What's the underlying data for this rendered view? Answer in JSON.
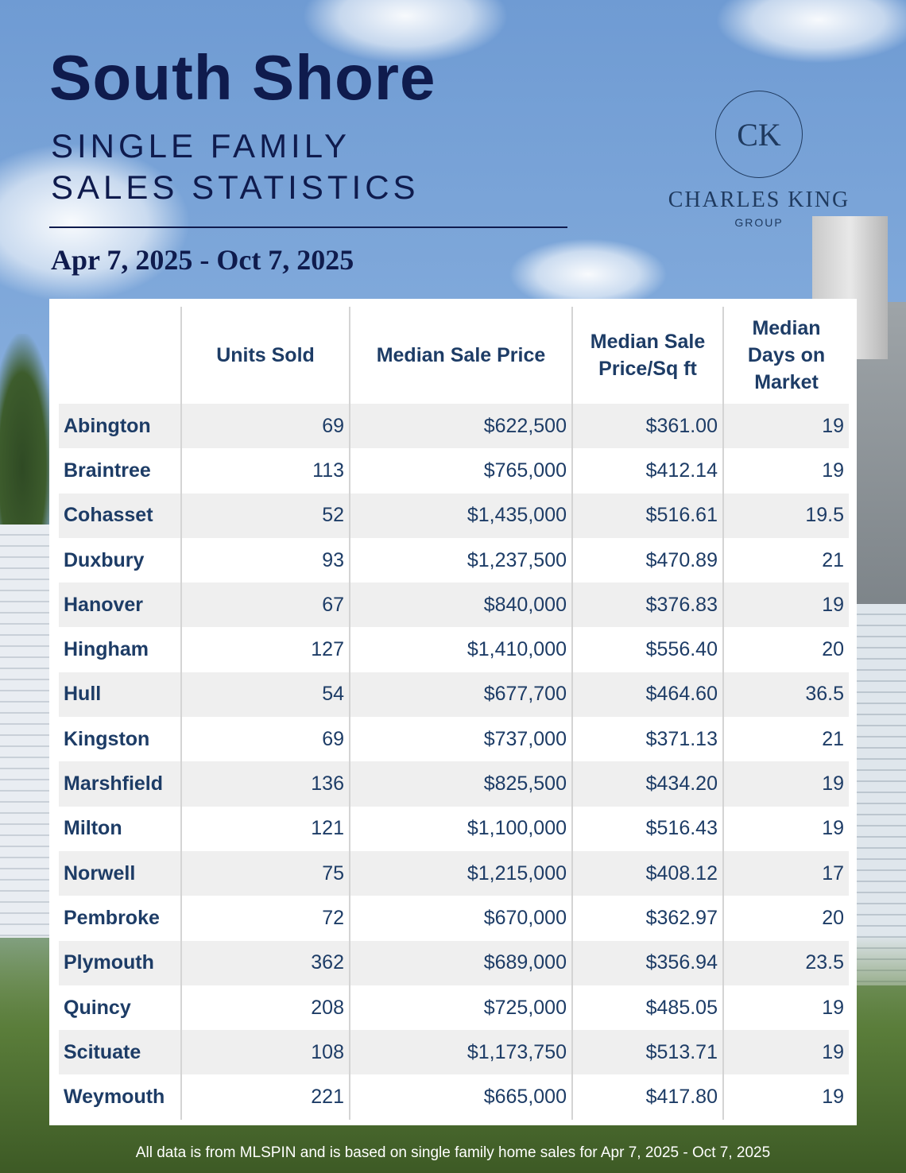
{
  "header": {
    "title": "South Shore",
    "subtitle_lines": [
      "SINGLE FAMILY",
      "SALES STATISTICS"
    ],
    "date_range": "Apr 7, 2025 - Oct 7, 2025"
  },
  "logo": {
    "initials": "CK",
    "name": "CHARLES KING",
    "tagline": "GROUP"
  },
  "table": {
    "columns": [
      "Units Sold",
      "Median Sale Price",
      "Median Sale Price/Sq ft",
      "Median Days on Market"
    ],
    "rows": [
      [
        "Abington",
        "69",
        "$622,500",
        "$361.00",
        "19"
      ],
      [
        "Braintree",
        "113",
        "$765,000",
        "$412.14",
        "19"
      ],
      [
        "Cohasset",
        "52",
        "$1,435,000",
        "$516.61",
        "19.5"
      ],
      [
        "Duxbury",
        "93",
        "$1,237,500",
        "$470.89",
        "21"
      ],
      [
        "Hanover",
        "67",
        "$840,000",
        "$376.83",
        "19"
      ],
      [
        "Hingham",
        "127",
        "$1,410,000",
        "$556.40",
        "20"
      ],
      [
        "Hull",
        "54",
        "$677,700",
        "$464.60",
        "36.5"
      ],
      [
        "Kingston",
        "69",
        "$737,000",
        "$371.13",
        "21"
      ],
      [
        "Marshfield",
        "136",
        "$825,500",
        "$434.20",
        "19"
      ],
      [
        "Milton",
        "121",
        "$1,100,000",
        "$516.43",
        "19"
      ],
      [
        "Norwell",
        "75",
        "$1,215,000",
        "$408.12",
        "17"
      ],
      [
        "Pembroke",
        "72",
        "$670,000",
        "$362.97",
        "20"
      ],
      [
        "Plymouth",
        "362",
        "$689,000",
        "$356.94",
        "23.5"
      ],
      [
        "Quincy",
        "208",
        "$725,000",
        "$485.05",
        "19"
      ],
      [
        "Scituate",
        "108",
        "$1,173,750",
        "$513.71",
        "19"
      ],
      [
        "Weymouth",
        "221",
        "$665,000",
        "$417.80",
        "19"
      ]
    ]
  },
  "footer": {
    "note": "All data is from MLSPIN and is based on single family home sales for Apr 7, 2025 - Oct 7, 2025"
  }
}
